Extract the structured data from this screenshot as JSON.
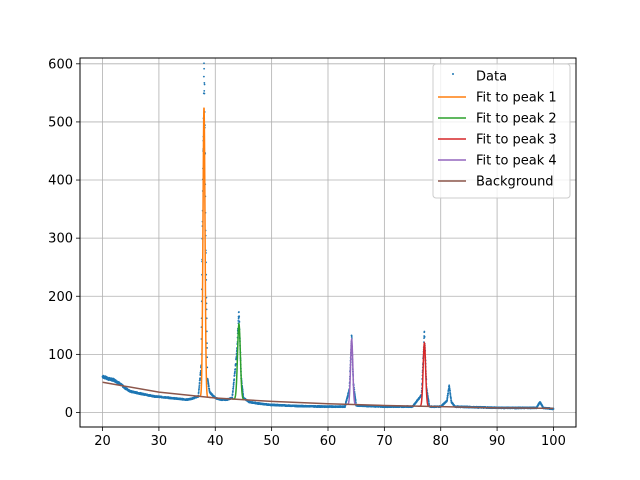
{
  "chart_data": {
    "type": "line",
    "xlim": [
      16,
      104
    ],
    "ylim": [
      -25,
      610
    ],
    "xticks": [
      20,
      30,
      40,
      50,
      60,
      70,
      80,
      90,
      100
    ],
    "yticks": [
      0,
      100,
      200,
      300,
      400,
      500,
      600
    ],
    "grid": true,
    "legend_position": "top-right",
    "series": [
      {
        "name": "Data",
        "style": "points",
        "color": "#1f77b4",
        "control_points": [
          [
            20,
            62
          ],
          [
            21,
            58
          ],
          [
            22,
            56
          ],
          [
            23,
            50
          ],
          [
            24,
            42
          ],
          [
            25,
            36
          ],
          [
            26,
            34
          ],
          [
            27,
            32
          ],
          [
            28,
            30
          ],
          [
            29,
            28
          ],
          [
            30,
            27
          ],
          [
            31,
            26
          ],
          [
            32,
            25
          ],
          [
            33,
            24
          ],
          [
            34,
            23
          ],
          [
            35,
            22
          ],
          [
            36,
            24
          ],
          [
            37,
            28
          ],
          [
            37.5,
            80
          ],
          [
            37.8,
            400
          ],
          [
            38.0,
            582
          ],
          [
            38.1,
            560
          ],
          [
            38.3,
            300
          ],
          [
            38.6,
            60
          ],
          [
            39,
            35
          ],
          [
            40,
            25
          ],
          [
            41,
            22
          ],
          [
            42,
            22
          ],
          [
            43,
            25
          ],
          [
            43.8,
            100
          ],
          [
            44.2,
            174
          ],
          [
            44.6,
            60
          ],
          [
            45,
            25
          ],
          [
            46,
            18
          ],
          [
            48,
            15
          ],
          [
            50,
            13
          ],
          [
            55,
            11
          ],
          [
            60,
            10
          ],
          [
            63,
            10
          ],
          [
            63.8,
            40
          ],
          [
            64.2,
            133
          ],
          [
            64.5,
            50
          ],
          [
            65,
            12
          ],
          [
            70,
            10
          ],
          [
            75,
            10
          ],
          [
            76.6,
            30
          ],
          [
            77.1,
            137
          ],
          [
            77.5,
            40
          ],
          [
            78,
            10
          ],
          [
            80,
            10
          ],
          [
            81.1,
            20
          ],
          [
            81.5,
            46
          ],
          [
            81.9,
            18
          ],
          [
            82.5,
            10
          ],
          [
            90,
            8
          ],
          [
            97,
            8
          ],
          [
            97.6,
            18
          ],
          [
            98.2,
            8
          ],
          [
            100,
            6
          ]
        ]
      },
      {
        "name": "Fit to peak 1",
        "style": "line",
        "color": "#ff7f0e",
        "center": 38.0,
        "height": 498,
        "width": 0.18,
        "range": [
          36.8,
          39.3
        ]
      },
      {
        "name": "Fit to peak 2",
        "style": "line",
        "color": "#2ca02c",
        "center": 44.2,
        "height": 130,
        "width": 0.25,
        "range": [
          43.0,
          45.4
        ]
      },
      {
        "name": "Fit to peak 3",
        "style": "line",
        "color": "#d62728",
        "center": 77.1,
        "height": 109,
        "width": 0.22,
        "range": [
          76.0,
          78.2
        ]
      },
      {
        "name": "Fit to peak 4",
        "style": "line",
        "color": "#9467bd",
        "center": 64.2,
        "height": 112,
        "width": 0.2,
        "range": [
          63.2,
          65.2
        ]
      },
      {
        "name": "Background",
        "style": "line",
        "color": "#8c564b",
        "x": [
          20,
          30,
          40,
          50,
          60,
          70,
          80,
          90,
          100
        ],
        "y": [
          52,
          35,
          25,
          19,
          15,
          12,
          10,
          8,
          7
        ]
      }
    ]
  }
}
